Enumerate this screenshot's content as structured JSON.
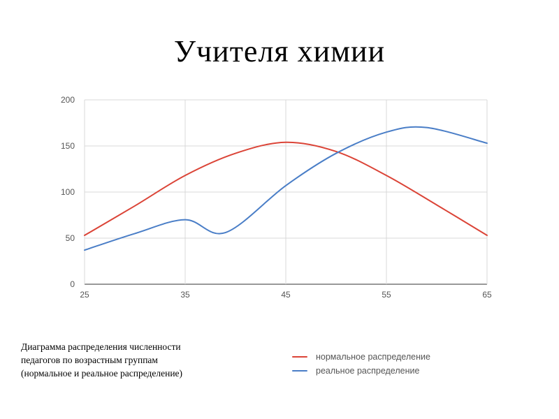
{
  "slide": {
    "title": "Учителя химии"
  },
  "caption": {
    "lines": [
      "Диаграмма распределения численности",
      "педагогов по возрастным группам",
      "(нормальное и реальное распределение)"
    ]
  },
  "chart_data": {
    "type": "line",
    "title": "",
    "xlabel": "",
    "ylabel": "",
    "xlim": [
      25,
      65
    ],
    "ylim": [
      0,
      200
    ],
    "x_ticks": [
      25,
      35,
      45,
      55,
      65
    ],
    "y_ticks": [
      0,
      50,
      100,
      150,
      200
    ],
    "grid": true,
    "legend": "bottom-right",
    "series": [
      {
        "name": "нормальное распределение",
        "color": "#db4437",
        "x": [
          25,
          30,
          35,
          40,
          45,
          50,
          55,
          60,
          65
        ],
        "y": [
          53,
          85,
          118,
          142,
          154,
          144,
          118,
          86,
          53
        ]
      },
      {
        "name": "реальное распределение",
        "color": "#4a7ec7",
        "x": [
          25,
          30,
          35,
          39,
          45,
          50,
          55,
          59,
          65
        ],
        "y": [
          37,
          55,
          70,
          56,
          107,
          142,
          165,
          170,
          153
        ]
      }
    ]
  }
}
